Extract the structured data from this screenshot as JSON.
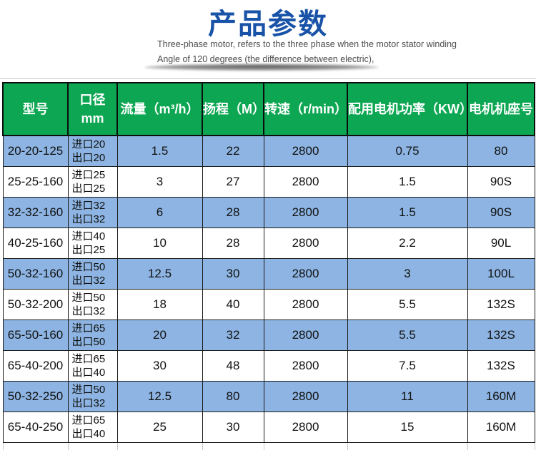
{
  "page": {
    "title": "产品参数",
    "subtitle_line1": "Three-phase motor, refers to the three phase when the motor stator winding",
    "subtitle_line2": "Angle of 120 degrees (the difference between electric),"
  },
  "colors": {
    "title_blue": "#1953a8",
    "header_green": "#0da652",
    "row_blue": "#8db4e2",
    "row_white": "#ffffff",
    "border_black": "#1a1a1a"
  },
  "table": {
    "headers": [
      {
        "lines": [
          "型号"
        ]
      },
      {
        "lines": [
          "口径",
          "mm"
        ]
      },
      {
        "lines": [
          "流量（m³/h）"
        ]
      },
      {
        "lines": [
          "扬程（M）"
        ]
      },
      {
        "lines": [
          "转速（r/min）"
        ]
      },
      {
        "lines": [
          "配用电机功率（KW）"
        ]
      },
      {
        "lines": [
          "电机机座号"
        ]
      }
    ],
    "rows": [
      {
        "model": "20-20-125",
        "inlet": "进口20",
        "outlet": "出口20",
        "flow": "1.5",
        "head": "22",
        "speed": "2800",
        "power": "0.75",
        "frame": "80"
      },
      {
        "model": "25-25-160",
        "inlet": "进口25",
        "outlet": "出口25",
        "flow": "3",
        "head": "27",
        "speed": "2800",
        "power": "1.5",
        "frame": "90S"
      },
      {
        "model": "32-32-160",
        "inlet": "进口32",
        "outlet": "出口32",
        "flow": "6",
        "head": "28",
        "speed": "2800",
        "power": "1.5",
        "frame": "90S"
      },
      {
        "model": "40-25-160",
        "inlet": "进口40",
        "outlet": "出口25",
        "flow": "10",
        "head": "28",
        "speed": "2800",
        "power": "2.2",
        "frame": "90L"
      },
      {
        "model": "50-32-160",
        "inlet": "进口50",
        "outlet": "出口32",
        "flow": "12.5",
        "head": "30",
        "speed": "2800",
        "power": "3",
        "frame": "100L"
      },
      {
        "model": "50-32-200",
        "inlet": "进口50",
        "outlet": "出口32",
        "flow": "18",
        "head": "40",
        "speed": "2800",
        "power": "5.5",
        "frame": "132S"
      },
      {
        "model": "65-50-160",
        "inlet": "进口65",
        "outlet": "出口50",
        "flow": "20",
        "head": "32",
        "speed": "2800",
        "power": "5.5",
        "frame": "132S"
      },
      {
        "model": "65-40-200",
        "inlet": "进口65",
        "outlet": "出口40",
        "flow": "30",
        "head": "48",
        "speed": "2800",
        "power": "7.5",
        "frame": "132S"
      },
      {
        "model": "50-32-250",
        "inlet": "进口50",
        "outlet": "出口32",
        "flow": "12.5",
        "head": "80",
        "speed": "2800",
        "power": "11",
        "frame": "160M"
      },
      {
        "model": "65-40-250",
        "inlet": "进口65",
        "outlet": "出口40",
        "flow": "25",
        "head": "30",
        "speed": "2800",
        "power": "15",
        "frame": "160M"
      }
    ]
  }
}
